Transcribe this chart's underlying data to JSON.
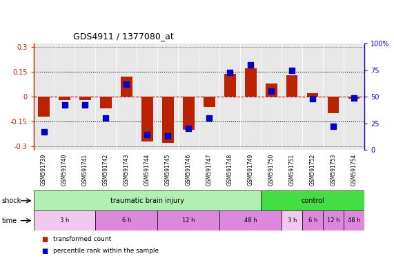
{
  "title": "GDS4911 / 1377080_at",
  "samples": [
    "GSM591739",
    "GSM591740",
    "GSM591741",
    "GSM591742",
    "GSM591743",
    "GSM591744",
    "GSM591745",
    "GSM591746",
    "GSM591747",
    "GSM591748",
    "GSM591749",
    "GSM591750",
    "GSM591751",
    "GSM591752",
    "GSM591753",
    "GSM591754"
  ],
  "red_bars": [
    -0.12,
    -0.02,
    -0.02,
    -0.07,
    0.12,
    -0.27,
    -0.28,
    -0.2,
    -0.06,
    0.14,
    0.17,
    0.08,
    0.13,
    0.02,
    -0.1,
    -0.01
  ],
  "blue_dots_pct": [
    17,
    42,
    42,
    30,
    62,
    14,
    13,
    20,
    30,
    73,
    80,
    55,
    75,
    48,
    22,
    49
  ],
  "ylim_left": [
    -0.32,
    0.32
  ],
  "ylim_right": [
    0,
    100
  ],
  "yticks_left": [
    -0.3,
    -0.15,
    0.0,
    0.15,
    0.3
  ],
  "ytick_labels_left": [
    "-0.3",
    "-0.15",
    "0",
    "0.15",
    "0.3"
  ],
  "yticks_right": [
    0,
    25,
    50,
    75,
    100
  ],
  "ytick_labels_right": [
    "0",
    "25",
    "50",
    "75",
    "100%"
  ],
  "shock_groups": [
    {
      "label": "traumatic brain injury",
      "start": 0,
      "end": 11,
      "color": "#b0f0b0"
    },
    {
      "label": "control",
      "start": 11,
      "end": 16,
      "color": "#44dd44"
    }
  ],
  "time_groups": [
    {
      "label": "3 h",
      "start": 0,
      "end": 3,
      "color": "#f0c8f0"
    },
    {
      "label": "6 h",
      "start": 3,
      "end": 6,
      "color": "#dd88dd"
    },
    {
      "label": "12 h",
      "start": 6,
      "end": 9,
      "color": "#dd88dd"
    },
    {
      "label": "48 h",
      "start": 9,
      "end": 12,
      "color": "#dd88dd"
    },
    {
      "label": "3 h",
      "start": 12,
      "end": 13,
      "color": "#f0c8f0"
    },
    {
      "label": "6 h",
      "start": 13,
      "end": 14,
      "color": "#dd88dd"
    },
    {
      "label": "12 h",
      "start": 14,
      "end": 15,
      "color": "#dd88dd"
    },
    {
      "label": "48 h",
      "start": 15,
      "end": 16,
      "color": "#dd88dd"
    }
  ],
  "red_color": "#bb2200",
  "blue_color": "#0000cc",
  "bar_width": 0.55,
  "dot_size": 28,
  "background_color": "#ffffff",
  "plot_bg": "#e8e8e8",
  "sample_bg": "#d8d8d8",
  "legend_items": [
    "transformed count",
    "percentile rank within the sample"
  ],
  "hline_color": "#000000",
  "hline_red_color": "#cc0000"
}
